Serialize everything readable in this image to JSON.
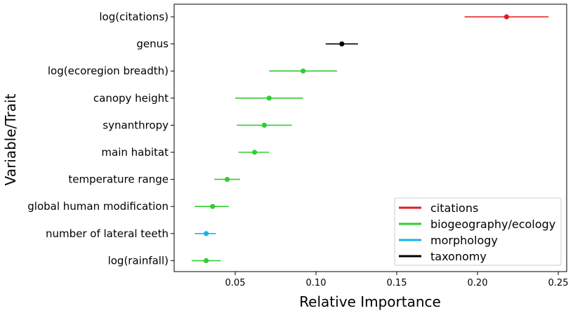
{
  "chart_data": {
    "type": "scatter",
    "title": "",
    "xlabel": "Relative Importance",
    "ylabel": "Variable/Trait",
    "xlim": [
      0.012,
      0.255
    ],
    "xticks": [
      0.05,
      0.1,
      0.15,
      0.2,
      0.25
    ],
    "xtick_labels": [
      "0.05",
      "0.10",
      "0.15",
      "0.20",
      "0.25"
    ],
    "grid": false,
    "legend_position": "bottom-right",
    "groups": [
      {
        "name": "citations",
        "color": "#e31a1c"
      },
      {
        "name": "biogeography/ecology",
        "color": "#33cc33"
      },
      {
        "name": "morphology",
        "color": "#1ab2e6"
      },
      {
        "name": "taxonomy",
        "color": "#000000"
      }
    ],
    "points": [
      {
        "label": "log(citations)",
        "group": "citations",
        "value": 0.218,
        "low": 0.192,
        "high": 0.244
      },
      {
        "label": "genus",
        "group": "taxonomy",
        "value": 0.116,
        "low": 0.106,
        "high": 0.126
      },
      {
        "label": "log(ecoregion breadth)",
        "group": "biogeography/ecology",
        "value": 0.092,
        "low": 0.071,
        "high": 0.113
      },
      {
        "label": "canopy height",
        "group": "biogeography/ecology",
        "value": 0.071,
        "low": 0.05,
        "high": 0.092
      },
      {
        "label": "synanthropy",
        "group": "biogeography/ecology",
        "value": 0.068,
        "low": 0.051,
        "high": 0.085
      },
      {
        "label": "main habitat",
        "group": "biogeography/ecology",
        "value": 0.062,
        "low": 0.052,
        "high": 0.071
      },
      {
        "label": "temperature range",
        "group": "biogeography/ecology",
        "value": 0.045,
        "low": 0.037,
        "high": 0.053
      },
      {
        "label": "global human modification",
        "group": "biogeography/ecology",
        "value": 0.036,
        "low": 0.025,
        "high": 0.046
      },
      {
        "label": "number of lateral teeth",
        "group": "morphology",
        "value": 0.032,
        "low": 0.025,
        "high": 0.038
      },
      {
        "label": "log(rainfall)",
        "group": "biogeography/ecology",
        "value": 0.032,
        "low": 0.023,
        "high": 0.041
      }
    ]
  }
}
